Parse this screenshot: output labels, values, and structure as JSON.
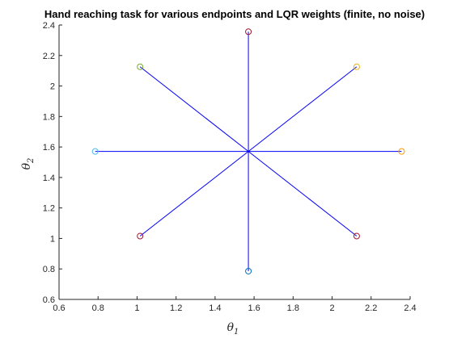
{
  "chart_data": {
    "type": "line",
    "title": "Hand reaching task for various endpoints and LQR weights (finite, no noise)",
    "xlabel": {
      "symbol": "θ",
      "subscript": "1"
    },
    "ylabel": {
      "symbol": "θ",
      "subscript": "2"
    },
    "xlim": [
      0.6,
      2.4
    ],
    "ylim": [
      0.6,
      2.4
    ],
    "xticks": [
      0.6,
      0.8,
      1,
      1.2,
      1.4,
      1.6,
      1.8,
      2,
      2.2,
      2.4
    ],
    "yticks": [
      0.6,
      0.8,
      1,
      1.2,
      1.4,
      1.6,
      1.8,
      2,
      2.2,
      2.4
    ],
    "xtick_labels": [
      "0.6",
      "0.8",
      "1",
      "1.2",
      "1.4",
      "1.6",
      "1.8",
      "2",
      "2.2",
      "2.4"
    ],
    "ytick_labels": [
      "0.6",
      "0.8",
      "1",
      "1.2",
      "1.4",
      "1.6",
      "1.8",
      "2",
      "2.2",
      "2.4"
    ],
    "grid": false,
    "start": {
      "x": 1.5708,
      "y": 1.5708
    },
    "line_color": "#0000ff",
    "endpoints": [
      {
        "x": 1.5708,
        "y": 2.3562,
        "color": "#a2142f"
      },
      {
        "x": 2.126,
        "y": 2.126,
        "color": "#edb120"
      },
      {
        "x": 2.3562,
        "y": 1.5708,
        "color": "#ff9900"
      },
      {
        "x": 2.126,
        "y": 1.0155,
        "color": "#a2142f"
      },
      {
        "x": 1.5708,
        "y": 0.7854,
        "color": "#0072bd"
      },
      {
        "x": 1.0155,
        "y": 1.0155,
        "color": "#a2142f"
      },
      {
        "x": 0.7854,
        "y": 1.5708,
        "color": "#4dbeee"
      },
      {
        "x": 1.0155,
        "y": 2.126,
        "color": "#77ac30"
      }
    ]
  }
}
